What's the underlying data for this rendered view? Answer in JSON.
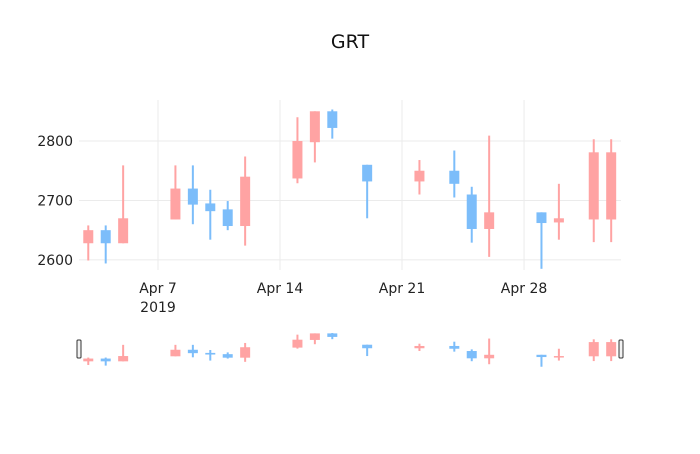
{
  "chart_data": {
    "type": "candlestick",
    "title": "GRT",
    "xlabel": "",
    "ylabel": "",
    "x_tick_labels": [
      "Apr 7\n2019",
      "Apr 14",
      "Apr 21",
      "Apr 28"
    ],
    "y_tick_labels": [
      "2600",
      "2700",
      "2800"
    ],
    "ylim": [
      2583,
      2869
    ],
    "xlim": [
      "2019-04-02.5",
      "2019-05-03.5"
    ],
    "grid": true,
    "rangeslider": true,
    "colors": {
      "increasing": "#ffa3a3",
      "decreasing": "#7cbdfa"
    },
    "candles": [
      {
        "date": "2019-04-03",
        "open": 2628,
        "high": 2658,
        "low": 2599,
        "close": 2650
      },
      {
        "date": "2019-04-04",
        "open": 2650,
        "high": 2658,
        "low": 2594,
        "close": 2628
      },
      {
        "date": "2019-04-05",
        "open": 2628,
        "high": 2759,
        "low": 2628,
        "close": 2670
      },
      {
        "date": "2019-04-08",
        "open": 2668,
        "high": 2759,
        "low": 2668,
        "close": 2720
      },
      {
        "date": "2019-04-09",
        "open": 2720,
        "high": 2759,
        "low": 2660,
        "close": 2693
      },
      {
        "date": "2019-04-10",
        "open": 2695,
        "high": 2718,
        "low": 2634,
        "close": 2682
      },
      {
        "date": "2019-04-11",
        "open": 2685,
        "high": 2699,
        "low": 2650,
        "close": 2657
      },
      {
        "date": "2019-04-12",
        "open": 2657,
        "high": 2774,
        "low": 2624,
        "close": 2740
      },
      {
        "date": "2019-04-15",
        "open": 2737,
        "high": 2840,
        "low": 2729,
        "close": 2800
      },
      {
        "date": "2019-04-16",
        "open": 2798,
        "high": 2850,
        "low": 2764,
        "close": 2850
      },
      {
        "date": "2019-04-17",
        "open": 2850,
        "high": 2853,
        "low": 2804,
        "close": 2822
      },
      {
        "date": "2019-04-19",
        "open": 2760,
        "high": 2760,
        "low": 2670,
        "close": 2732
      },
      {
        "date": "2019-04-22",
        "open": 2732,
        "high": 2768,
        "low": 2710,
        "close": 2750
      },
      {
        "date": "2019-04-24",
        "open": 2750,
        "high": 2784,
        "low": 2705,
        "close": 2728
      },
      {
        "date": "2019-04-25",
        "open": 2710,
        "high": 2723,
        "low": 2629,
        "close": 2652
      },
      {
        "date": "2019-04-26",
        "open": 2652,
        "high": 2809,
        "low": 2605,
        "close": 2680
      },
      {
        "date": "2019-04-29",
        "open": 2680,
        "high": 2680,
        "low": 2585,
        "close": 2662
      },
      {
        "date": "2019-04-30",
        "open": 2663,
        "high": 2728,
        "low": 2634,
        "close": 2670
      },
      {
        "date": "2019-05-02",
        "open": 2668,
        "high": 2803,
        "low": 2630,
        "close": 2781
      },
      {
        "date": "2019-05-03",
        "open": 2668,
        "high": 2803,
        "low": 2630,
        "close": 2781
      }
    ]
  }
}
